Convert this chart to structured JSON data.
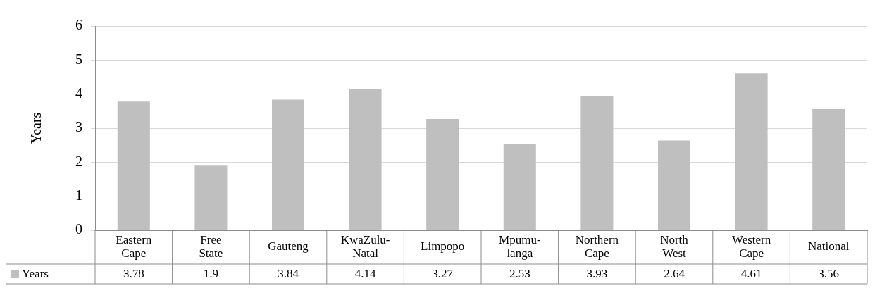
{
  "chart_data": {
    "type": "bar",
    "ylabel": "Years",
    "categories": [
      "Eastern Cape",
      "Free State",
      "Gauteng",
      "KwaZulu-Natal",
      "Limpopo",
      "Mpumu-langa",
      "Northern Cape",
      "North West",
      "Western Cape",
      "National"
    ],
    "series": [
      {
        "name": "Years",
        "color": "#bfbfbf",
        "values": [
          3.78,
          1.9,
          3.84,
          4.14,
          3.27,
          2.53,
          3.93,
          2.64,
          4.61,
          3.56
        ]
      }
    ],
    "ylim": [
      0,
      6
    ],
    "yticks": [
      0,
      1,
      2,
      3,
      4,
      5,
      6
    ],
    "grid": "y",
    "legend": "bottom left",
    "data_labels": true
  }
}
